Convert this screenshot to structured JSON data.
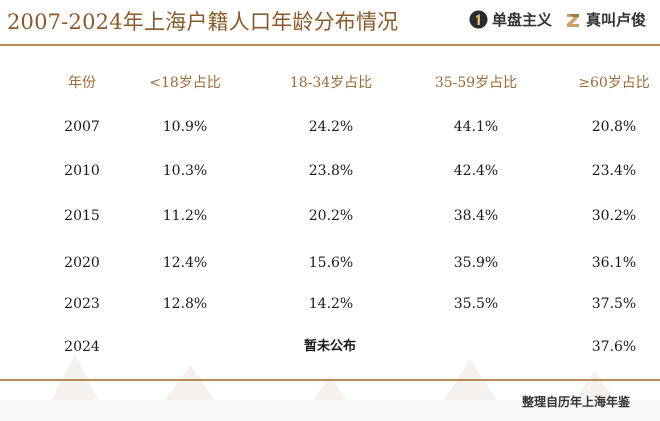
{
  "title": "2007-2024年上海户籍人口年龄分布情况",
  "brands": [
    {
      "icon": "one-circle-logo-icon",
      "label": "单盘主义"
    },
    {
      "icon": "z-logo-icon",
      "label": "真叫卢俊"
    }
  ],
  "colors": {
    "accent": "#8a5a2b",
    "rule": "#b98a55",
    "header_text": "#9b6b3a"
  },
  "table": {
    "headers": [
      "年份",
      "<18岁占比",
      "18-34岁占比",
      "35-59岁占比",
      "≥60岁占比"
    ],
    "rows": [
      [
        "2007",
        "10.9%",
        "24.2%",
        "44.1%",
        "20.8%"
      ],
      [
        "2010",
        "10.3%",
        "23.8%",
        "42.4%",
        "23.4%"
      ],
      [
        "2015",
        "11.2%",
        "20.2%",
        "38.4%",
        "30.2%"
      ],
      [
        "2020",
        "12.4%",
        "15.6%",
        "35.9%",
        "36.1%"
      ],
      [
        "2023",
        "12.8%",
        "14.2%",
        "35.5%",
        "37.5%"
      ]
    ],
    "last_row": {
      "year": "2024",
      "note": "暂未公布",
      "elderly": "37.6%"
    }
  },
  "source": "整理自历年上海年鉴"
}
